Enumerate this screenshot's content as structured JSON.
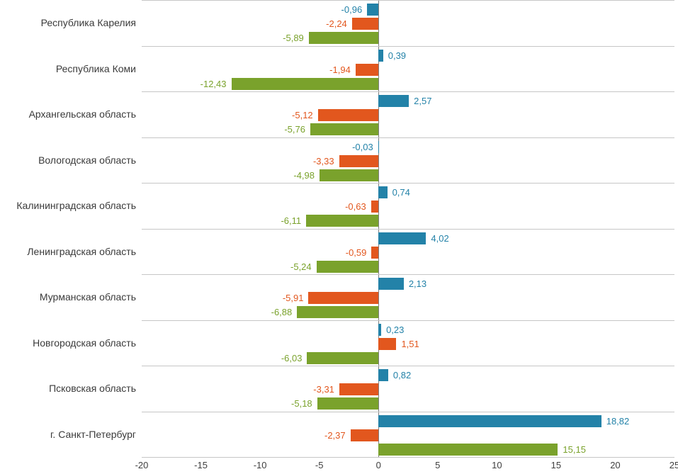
{
  "chart_data": {
    "type": "bar",
    "orientation": "horizontal",
    "title": "",
    "legend": "none",
    "categories": [
      "Республика Карелия",
      "Республика Коми",
      "Архангельская область",
      "Вологодская область",
      "Калининградская область",
      "Ленинградская область",
      "Мурманская область",
      "Новгородская область",
      "Псковская область",
      "г. Санкт-Петербург"
    ],
    "series": [
      {
        "name": "series-blue",
        "color": "#2382A8",
        "values": [
          -0.96,
          0.39,
          2.57,
          -0.03,
          0.74,
          4.02,
          2.13,
          0.23,
          0.82,
          18.82
        ],
        "labels": [
          "-0,96",
          "0,39",
          "2,57",
          "-0,03",
          "0,74",
          "4,02",
          "2,13",
          "0,23",
          "0,82",
          "18,82"
        ]
      },
      {
        "name": "series-orange",
        "color": "#E2571E",
        "values": [
          -2.24,
          -1.94,
          -5.12,
          -3.33,
          -0.63,
          -0.59,
          -5.91,
          1.51,
          -3.31,
          -2.37
        ],
        "labels": [
          "-2,24",
          "-1,94",
          "-5,12",
          "-3,33",
          "-0,63",
          "-0,59",
          "-5,91",
          "1,51",
          "-3,31",
          "-2,37"
        ]
      },
      {
        "name": "series-green",
        "color": "#7AA22C",
        "values": [
          -5.89,
          -12.43,
          -5.76,
          -4.98,
          -6.11,
          -5.24,
          -6.88,
          -6.03,
          -5.18,
          15.15
        ],
        "labels": [
          "-5,89",
          "-12,43",
          "-5,76",
          "-4,98",
          "-6,11",
          "-5,24",
          "-6,88",
          "-6,03",
          "-5,18",
          "15,15"
        ]
      }
    ],
    "x_axis": {
      "min": -20,
      "max": 25,
      "tick_values": [
        -20,
        -15,
        -10,
        -5,
        0,
        5,
        10,
        15,
        20,
        25
      ],
      "tick_labels": [
        "-20",
        "-15",
        "-10",
        "-5",
        "0",
        "5",
        "10",
        "15",
        "20",
        "25"
      ]
    },
    "grid": {
      "separator_color": "#C6C6C6",
      "zero_line_color": "#7F7F7F",
      "tick_text_color": "#404040",
      "category_text_color": "#3A3A3A"
    }
  }
}
